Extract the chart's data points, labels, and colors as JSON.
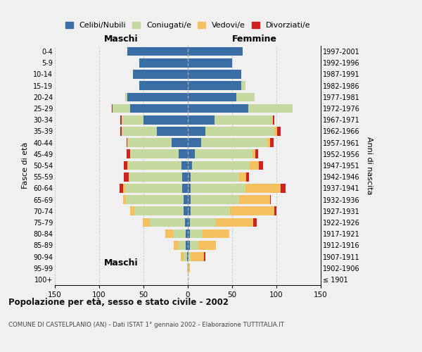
{
  "age_groups": [
    "100+",
    "95-99",
    "90-94",
    "85-89",
    "80-84",
    "75-79",
    "70-74",
    "65-69",
    "60-64",
    "55-59",
    "50-54",
    "45-49",
    "40-44",
    "35-39",
    "30-34",
    "25-29",
    "20-24",
    "15-19",
    "10-14",
    "5-9",
    "0-4"
  ],
  "birth_years": [
    "≤ 1901",
    "1902-1906",
    "1907-1911",
    "1912-1916",
    "1917-1921",
    "1922-1926",
    "1927-1931",
    "1932-1936",
    "1937-1941",
    "1942-1946",
    "1947-1951",
    "1952-1956",
    "1957-1961",
    "1962-1966",
    "1967-1971",
    "1972-1976",
    "1977-1981",
    "1982-1986",
    "1987-1991",
    "1992-1996",
    "1997-2001"
  ],
  "maschi_celibi": [
    0,
    0,
    1,
    2,
    2,
    3,
    5,
    5,
    6,
    6,
    7,
    10,
    18,
    35,
    50,
    65,
    68,
    55,
    62,
    55,
    68
  ],
  "maschi_coniugati": [
    0,
    1,
    4,
    8,
    15,
    40,
    55,
    65,
    65,
    60,
    60,
    55,
    50,
    40,
    25,
    20,
    3,
    0,
    0,
    0,
    0
  ],
  "maschi_vedovi": [
    0,
    0,
    3,
    6,
    8,
    8,
    5,
    3,
    2,
    1,
    1,
    0,
    0,
    0,
    0,
    0,
    0,
    0,
    0,
    0,
    0
  ],
  "maschi_divorziati": [
    0,
    0,
    0,
    0,
    0,
    0,
    0,
    0,
    4,
    5,
    4,
    4,
    1,
    1,
    1,
    1,
    0,
    0,
    0,
    0,
    0
  ],
  "femmine_celibi": [
    0,
    0,
    1,
    2,
    2,
    2,
    3,
    3,
    3,
    3,
    5,
    8,
    15,
    20,
    30,
    68,
    55,
    60,
    60,
    50,
    62
  ],
  "femmine_coniugati": [
    0,
    0,
    2,
    10,
    15,
    30,
    45,
    55,
    62,
    55,
    65,
    65,
    75,
    78,
    65,
    50,
    20,
    5,
    0,
    0,
    0
  ],
  "femmine_vedovi": [
    0,
    2,
    15,
    20,
    30,
    42,
    50,
    35,
    40,
    8,
    10,
    3,
    3,
    3,
    1,
    0,
    0,
    0,
    0,
    0,
    0
  ],
  "femmine_divorziati": [
    0,
    0,
    2,
    0,
    0,
    4,
    2,
    1,
    5,
    3,
    5,
    3,
    4,
    4,
    2,
    0,
    0,
    0,
    0,
    0,
    0
  ],
  "color_celibi": "#3a6ea5",
  "color_coniugati": "#c5d89d",
  "color_vedovi": "#f5c060",
  "color_divorziati": "#cc2222",
  "title": "Popolazione per età, sesso e stato civile - 2002",
  "subtitle": "COMUNE DI CASTELPLANIO (AN) - Dati ISTAT 1° gennaio 2002 - Elaborazione TUTTITALIA.IT",
  "ylabel_left": "Fasce di età",
  "ylabel_right": "Anni di nascita",
  "xlabel_maschi": "Maschi",
  "xlabel_femmine": "Femmine",
  "xlim": 150,
  "bg_color": "#f0f0f0",
  "grid_color": "#cccccc"
}
